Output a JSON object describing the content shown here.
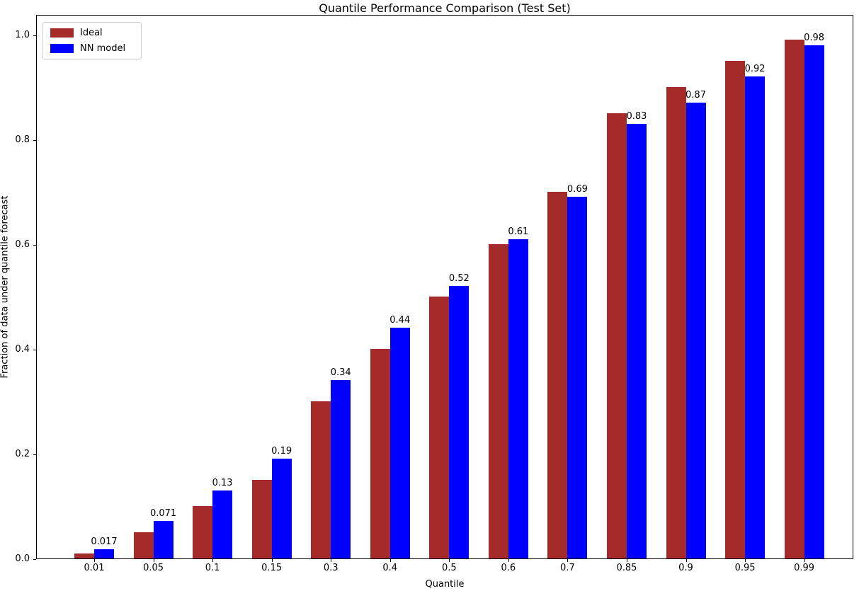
{
  "chart_data": {
    "type": "bar",
    "title": "Quantile Performance Comparison (Test Set)",
    "xlabel": "Quantile",
    "ylabel": "Fraction of data under quantile forecast",
    "categories": [
      "0.01",
      "0.05",
      "0.1",
      "0.15",
      "0.3",
      "0.4",
      "0.5",
      "0.6",
      "0.7",
      "0.85",
      "0.9",
      "0.95",
      "0.99"
    ],
    "series": [
      {
        "name": "Ideal",
        "color": "#A52A2A",
        "values": [
          0.01,
          0.05,
          0.1,
          0.15,
          0.3,
          0.4,
          0.5,
          0.6,
          0.7,
          0.85,
          0.9,
          0.95,
          0.99
        ]
      },
      {
        "name": "NN model",
        "color": "#0000FF",
        "values": [
          0.017,
          0.071,
          0.13,
          0.19,
          0.34,
          0.44,
          0.52,
          0.61,
          0.69,
          0.83,
          0.87,
          0.92,
          0.98
        ],
        "bar_labels": [
          "0.017",
          "0.071",
          "0.13",
          "0.19",
          "0.34",
          "0.44",
          "0.52",
          "0.61",
          "0.69",
          "0.83",
          "0.87",
          "0.92",
          "0.98"
        ]
      }
    ],
    "yticks": [
      "0.0",
      "0.2",
      "0.4",
      "0.6",
      "0.8",
      "1.0"
    ],
    "ylim": [
      0,
      1.04
    ],
    "grid": false,
    "legend_position": "upper left",
    "text_color": "#000000",
    "background_color": "#ffffff"
  }
}
